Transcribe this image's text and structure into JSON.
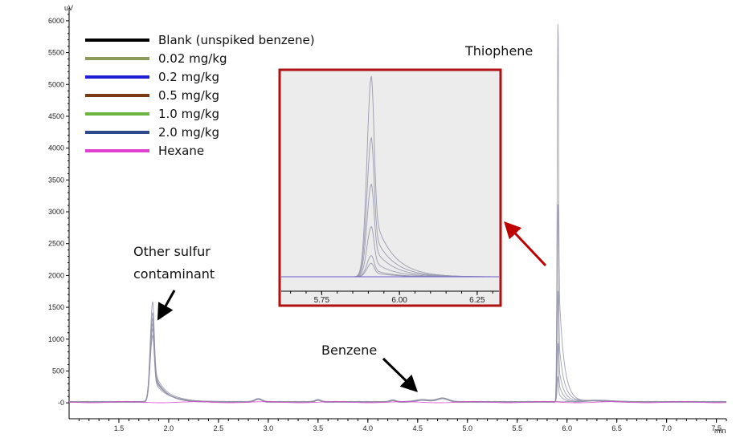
{
  "chart_data": {
    "type": "line",
    "y_unit": "uV",
    "x_unit": "min",
    "xlim": [
      1.0,
      7.6
    ],
    "ylim": [
      -250,
      6200
    ],
    "x_ticks": [
      "1.5",
      "2.0",
      "2.5",
      "3.0",
      "3.5",
      "4.0",
      "4.5",
      "5.0",
      "5.5",
      "6.0",
      "6.5",
      "7.0",
      "7.5"
    ],
    "y_ticks": [
      "-0",
      "500",
      "1000",
      "1500",
      "2000",
      "2500",
      "3000",
      "3500",
      "4000",
      "4500",
      "5000",
      "5500",
      "6000"
    ],
    "legend": [
      {
        "name": "Blank (unspiked benzene)",
        "color": "#000000"
      },
      {
        "name": "0.02 mg/kg",
        "color": "#8c9a5b"
      },
      {
        "name": "0.2 mg/kg",
        "color": "#1f1fd6"
      },
      {
        "name": "0.5 mg/kg",
        "color": "#7a3b12"
      },
      {
        "name": "1.0 mg/kg",
        "color": "#6db33f"
      },
      {
        "name": "2.0 mg/kg",
        "color": "#2e4a8c"
      },
      {
        "name": "Hexane",
        "color": "#e040d0"
      }
    ],
    "series": [
      {
        "name": "Blank (unspiked benzene)",
        "sulfur_peak": 1050,
        "thiophene_peak": 0
      },
      {
        "name": "0.02 mg/kg",
        "sulfur_peak": 1150,
        "thiophene_peak": 400
      },
      {
        "name": "0.2 mg/kg",
        "sulfur_peak": 1220,
        "thiophene_peak": 950
      },
      {
        "name": "0.5 mg/kg",
        "sulfur_peak": 1300,
        "thiophene_peak": 1800
      },
      {
        "name": "1.0 mg/kg",
        "sulfur_peak": 1400,
        "thiophene_peak": 3200
      },
      {
        "name": "2.0 mg/kg",
        "sulfur_peak": 1580,
        "thiophene_peak": 6100
      },
      {
        "name": "Hexane",
        "sulfur_peak": 0,
        "thiophene_peak": 0
      }
    ],
    "peaks": {
      "sulfur_rt": 1.84,
      "thiophene_rt": 5.91,
      "benzene_rt": 4.75
    },
    "annotations": {
      "other_sulfur_line1": "Other sulfur",
      "other_sulfur_line2": "contaminant",
      "thiophene": "Thiophene",
      "benzene": "Benzene"
    },
    "inset": {
      "x_ticks": [
        "5.75",
        "6.00",
        "6.25"
      ],
      "xlim": [
        5.62,
        6.32
      ],
      "peak_rt": 5.91,
      "peaks": [
        5.2,
        3.6,
        2.4,
        1.3,
        0.55,
        0.35
      ]
    }
  },
  "colors": {
    "inset_border": "#b01010",
    "inset_bg": "#ececec",
    "arrow_red": "#c00000"
  }
}
